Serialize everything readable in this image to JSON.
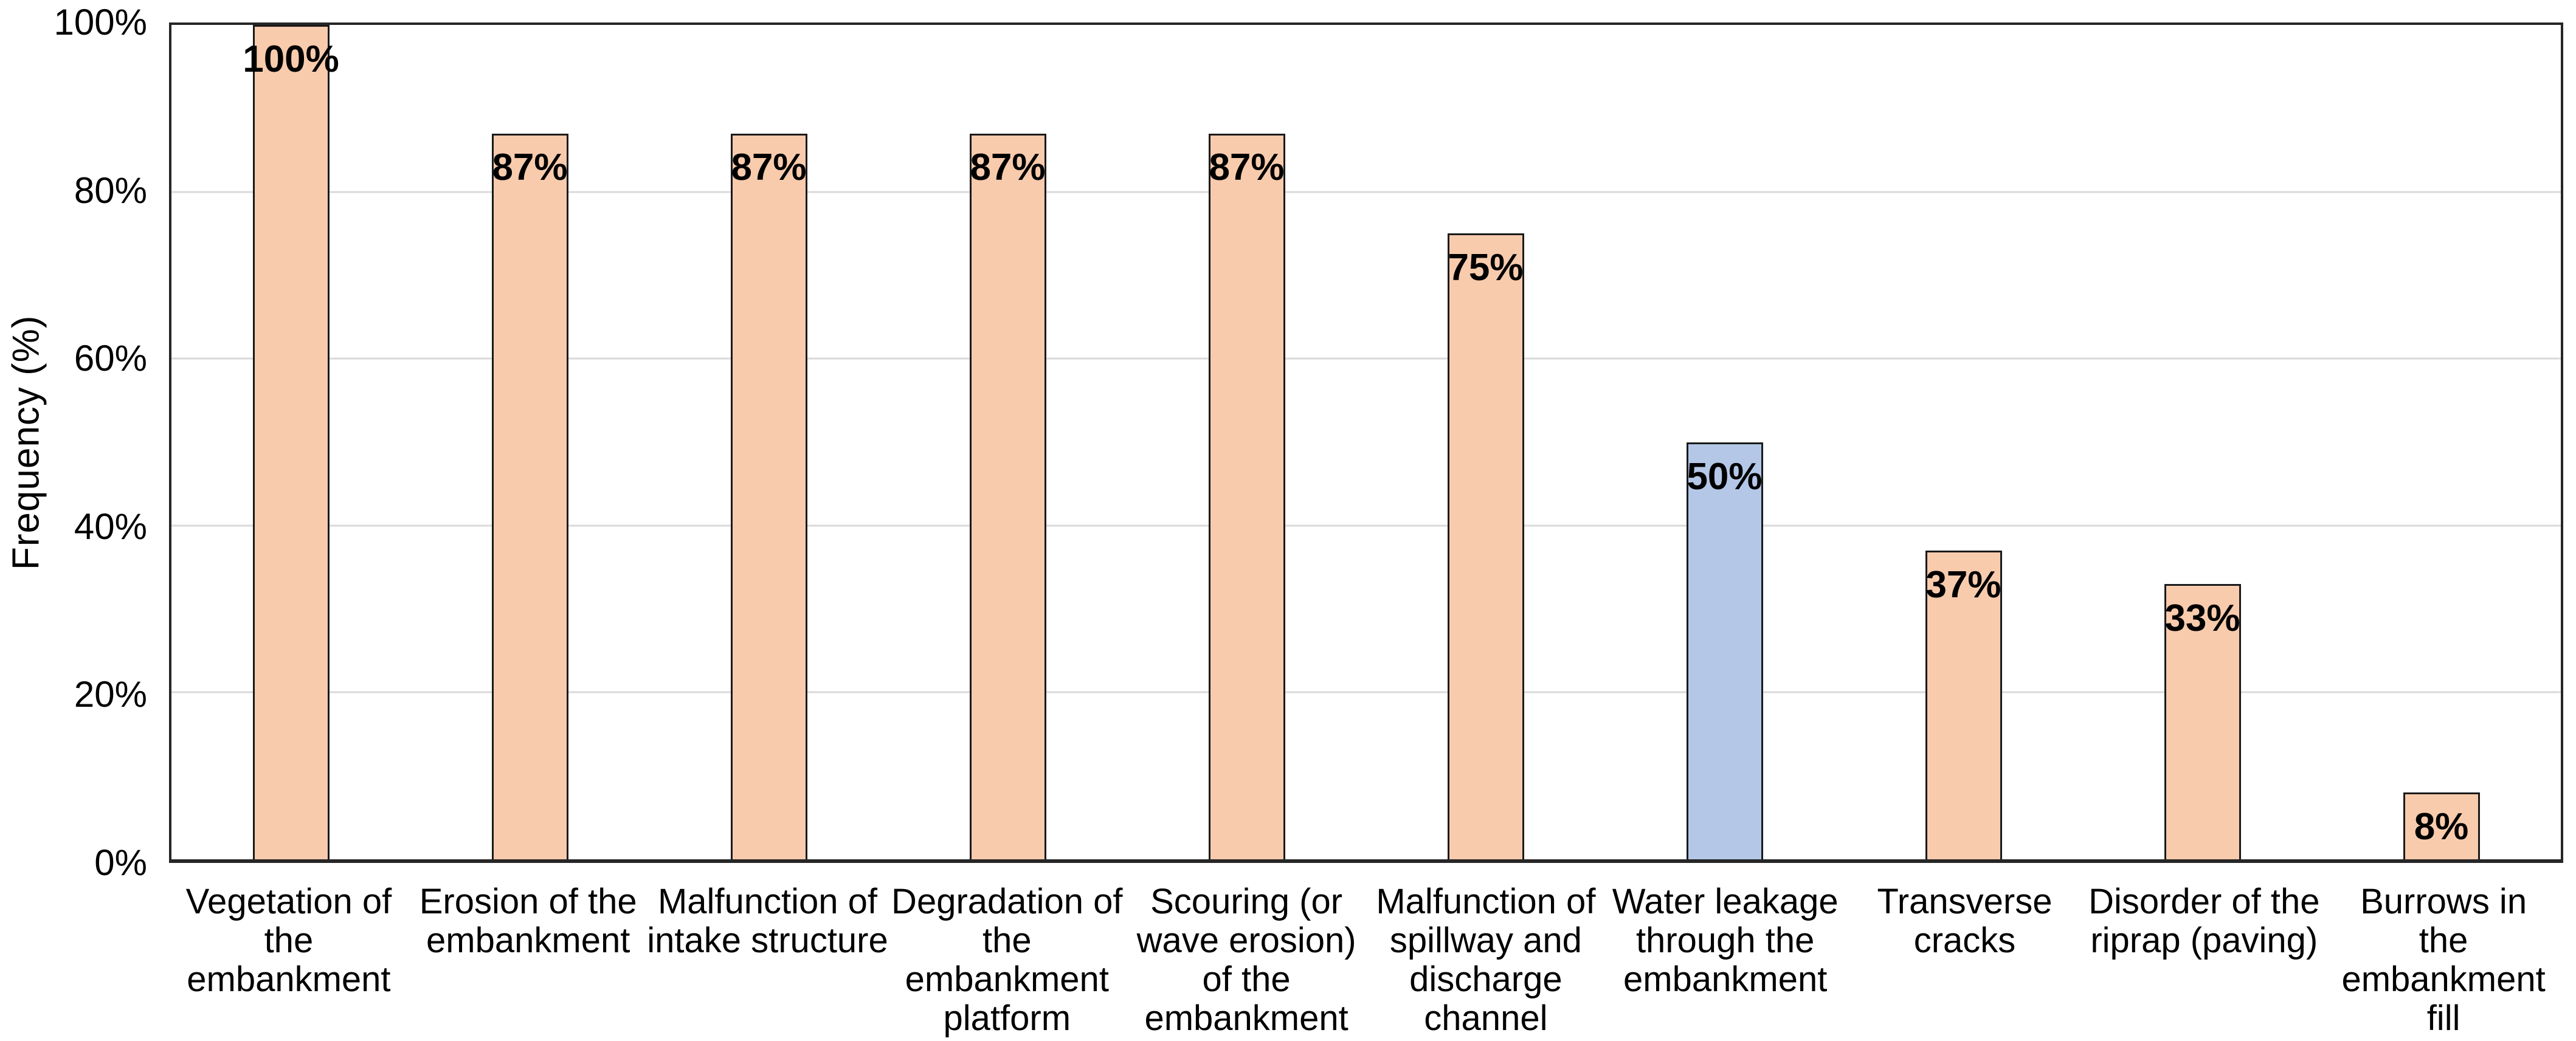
{
  "chart_data": {
    "type": "bar",
    "title": "",
    "xlabel": "",
    "ylabel": "Frequency (%)",
    "ylim": [
      0,
      100
    ],
    "grid": "horizontal, 20% intervals, light gray",
    "legend": "none",
    "yticks": [
      {
        "label": "100%",
        "value": 100
      },
      {
        "label": "80%",
        "value": 80
      },
      {
        "label": "60%",
        "value": 60
      },
      {
        "label": "40%",
        "value": 40
      },
      {
        "label": "20%",
        "value": 20
      },
      {
        "label": "0%",
        "value": 0
      }
    ],
    "categories": [
      "Vegetation of\nthe\nembankment",
      "Erosion of the\nembankment",
      "Malfunction of\nintake structure",
      "Degradation of\nthe\nembankment\nplatform",
      "Scouring (or\nwave erosion)\nof the\nembankment",
      "Malfunction of\nspillway and\ndischarge\nchannel",
      "Water leakage\nthrough the\nembankment",
      "Transverse\ncracks",
      "Disorder of the\nriprap (paving)",
      "Burrows in the\nembankment fill"
    ],
    "values": [
      100,
      87,
      87,
      87,
      87,
      75,
      50,
      37,
      33,
      8
    ],
    "data_labels": [
      "100%",
      "87%",
      "87%",
      "87%",
      "87%",
      "75%",
      "50%",
      "37%",
      "33%",
      "8%"
    ],
    "highlight_index": 6,
    "colors": {
      "bar_fill": "#F8CBAD",
      "highlight_fill": "#B4C7E7",
      "bar_border": "#1A1A1A",
      "gridline": "#D9D9D9",
      "axis_border": "#262626",
      "text": "#000000"
    }
  }
}
